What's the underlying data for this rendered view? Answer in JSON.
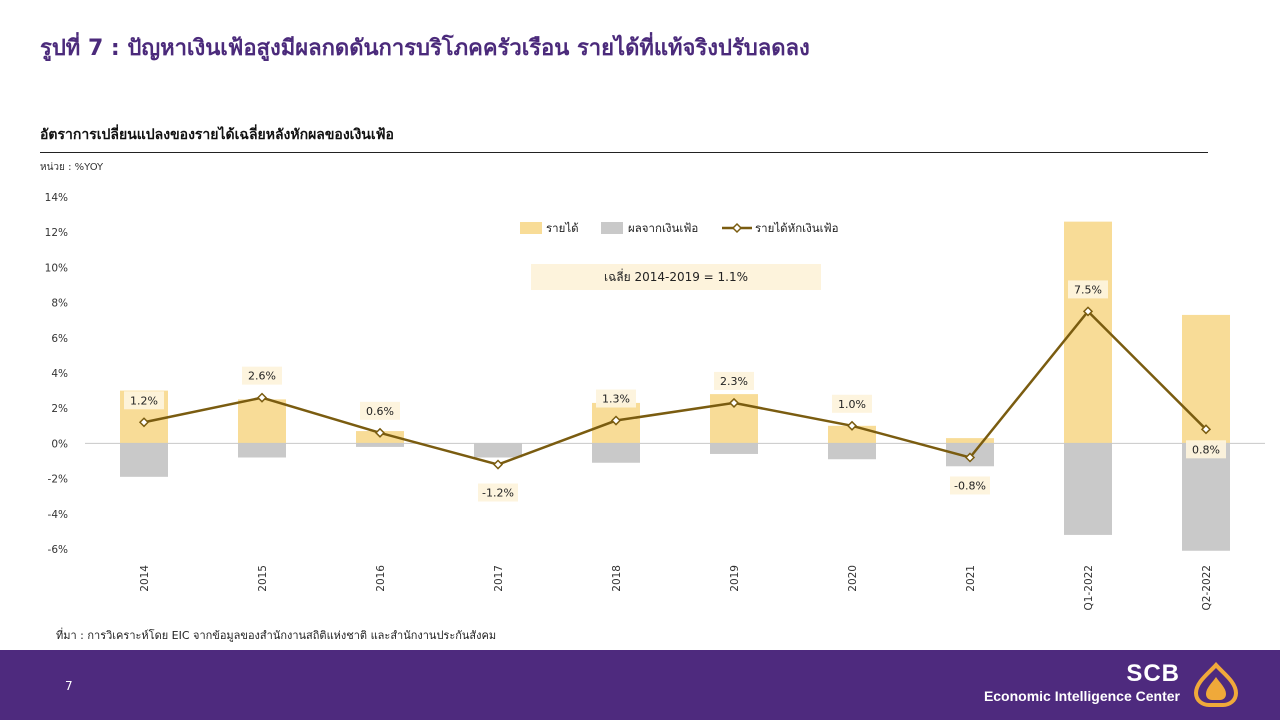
{
  "header": {
    "title": "รูปที่ 7 : ปัญหาเงินเฟ้อสูงมีผลกดดันการบริโภคครัวเรือน  รายได้ที่แท้จริงปรับลดลง",
    "subtitle": "อัตราการเปลี่ยนแปลงของรายได้เฉลี่ยหลังหักผลของเงินเฟ้อ",
    "unit": "หน่วย : %YOY"
  },
  "source": "ที่มา : การวิเคราะห์โดย EIC จากข้อมูลของสำนักงานสถิติแห่งชาติ และสำนักงานประกันสังคม",
  "footer": {
    "page_number": "7",
    "brand_name": "SCB",
    "brand_tagline": "Economic Intelligence Center",
    "colors": {
      "band": "#4e2a7e",
      "logo": "#f0a93a"
    }
  },
  "chart_data": {
    "type": "bar",
    "categories": [
      "2014",
      "2015",
      "2016",
      "2017",
      "2018",
      "2019",
      "2020",
      "2021",
      "Q1-2022",
      "Q2-2022"
    ],
    "ylim": [
      -6,
      14
    ],
    "yticks": [
      "14%",
      "12%",
      "10%",
      "8%",
      "6%",
      "4%",
      "2%",
      "0%",
      "-2%",
      "-4%",
      "-6%"
    ],
    "series": [
      {
        "name": "รายได้",
        "kind": "bar",
        "color": "#f8dc97",
        "values": [
          3.0,
          2.5,
          0.7,
          -0.5,
          2.3,
          2.8,
          1.0,
          0.3,
          12.6,
          7.3
        ]
      },
      {
        "name": "ผลจากเงินเฟ้อ",
        "kind": "bar",
        "color": "#c9c9c9",
        "values": [
          -1.9,
          -0.8,
          -0.2,
          -0.8,
          -1.1,
          -0.6,
          -0.9,
          -1.3,
          -5.2,
          -6.1
        ]
      },
      {
        "name": "รายได้หักเงินเฟ้อ",
        "kind": "line",
        "color": "#7a5c10",
        "values": [
          1.2,
          2.6,
          0.6,
          -1.2,
          1.3,
          2.3,
          1.0,
          -0.8,
          7.5,
          0.8
        ],
        "labels": [
          "1.2%",
          "2.6%",
          "0.6%",
          "-1.2%",
          "1.3%",
          "2.3%",
          "1.0%",
          "-0.8%",
          "7.5%",
          "0.8%"
        ]
      }
    ],
    "annotation": "เฉลี่ย  2014-2019  =  1.1%",
    "legend_position": "top-center",
    "grid": false
  }
}
